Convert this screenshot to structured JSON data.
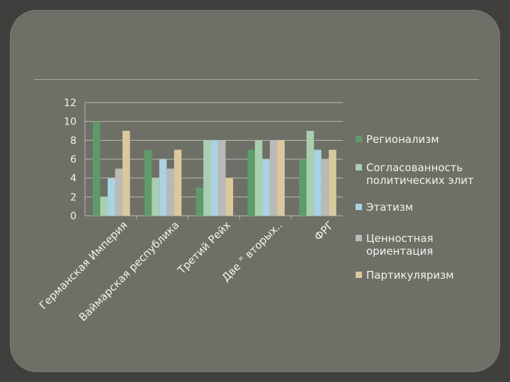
{
  "chart_data": {
    "type": "bar",
    "categories": [
      "Германская Империя",
      "Ваймарская республика",
      "Третий Рейх",
      "Две \" вторых..",
      "ФРГ"
    ],
    "series": [
      {
        "name": "Регионализм",
        "color": "#5f9a6a",
        "values": [
          10,
          7,
          3,
          7,
          6
        ]
      },
      {
        "name": "Согласованность политических элит",
        "color": "#a8cfae",
        "values": [
          2,
          4,
          8,
          8,
          9
        ]
      },
      {
        "name": "Этатизм",
        "color": "#a9d3e3",
        "values": [
          4,
          6,
          8,
          6,
          7
        ]
      },
      {
        "name": "Ценностная ориентация",
        "color": "#b9b9b5",
        "values": [
          5,
          5,
          8,
          8,
          6
        ]
      },
      {
        "name": "Партикуляризм",
        "color": "#d9c99c",
        "values": [
          9,
          7,
          4,
          8,
          7
        ]
      }
    ],
    "legend_lines": [
      [
        "Регионализм"
      ],
      [
        "Согласованность",
        "политических элит"
      ],
      [
        "Этатизм"
      ],
      [
        "Ценностная",
        "ориентация"
      ],
      [
        "Партикуляризм"
      ]
    ],
    "y_ticks": [
      "0",
      "2",
      "4",
      "6",
      "8",
      "10",
      "12"
    ],
    "ylim": [
      0,
      12
    ],
    "grid": true,
    "legend_position": "right",
    "title": "",
    "xlabel": "",
    "ylabel": ""
  }
}
